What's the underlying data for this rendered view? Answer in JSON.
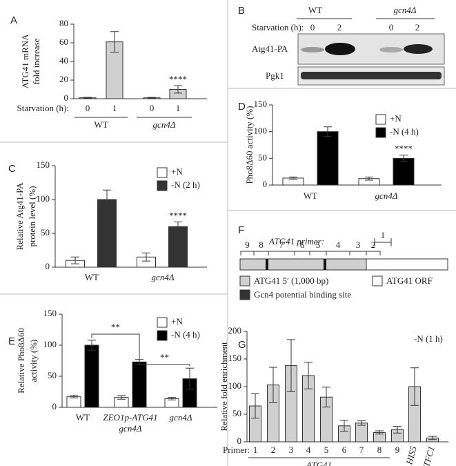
{
  "chart_data": [
    {
      "type": "bar",
      "panel": "A",
      "y_label": [
        "ATG41 mRNA",
        "fold increase"
      ],
      "x_label": "Starvation (h):",
      "categories": [
        "0",
        "1",
        "0",
        "1"
      ],
      "groups": [
        "WT",
        "gcn4Δ"
      ],
      "color": "#d0d0d0",
      "values": [
        1,
        61,
        1,
        10
      ],
      "errors": [
        0.5,
        11,
        0.5,
        4
      ],
      "ylim": [
        0,
        80
      ],
      "yticks": [
        0,
        20,
        40,
        60,
        80
      ],
      "annotations": [
        "****"
      ]
    },
    {
      "type": "grouped-bar",
      "panel": "C",
      "y_label": [
        "Relative Atg41-PA",
        "protein level (%)"
      ],
      "categories": [
        "WT",
        "gcn4Δ"
      ],
      "series": [
        {
          "name": "+N",
          "color": "#ffffff",
          "values": [
            10,
            15
          ],
          "errors": [
            5,
            6
          ]
        },
        {
          "name": "-N (2 h)",
          "color": "#333333",
          "values": [
            100,
            60
          ],
          "errors": [
            14,
            7
          ]
        }
      ],
      "ylim": [
        0,
        150
      ],
      "yticks": [
        0,
        50,
        100,
        150
      ],
      "annotations": [
        "****"
      ]
    },
    {
      "type": "grouped-bar",
      "panel": "D",
      "y_label": [
        "Pho8Δ60 activity (%)"
      ],
      "categories": [
        "WT",
        "gcn4Δ"
      ],
      "series": [
        {
          "name": "+N",
          "color": "#ffffff",
          "values": [
            13,
            12
          ],
          "errors": [
            2,
            3
          ]
        },
        {
          "name": "-N (4 h)",
          "color": "#000000",
          "values": [
            100,
            50
          ],
          "errors": [
            9,
            6
          ]
        }
      ],
      "ylim": [
        0,
        150
      ],
      "yticks": [
        0,
        50,
        100,
        150
      ],
      "annotations": [
        "****"
      ]
    },
    {
      "type": "grouped-bar",
      "panel": "E",
      "y_label": [
        "Relative Pho8Δ60",
        "activity (%)"
      ],
      "categories": [
        "WT",
        "ZEO1p-ATG41 gcn4Δ",
        "gcn4Δ"
      ],
      "series": [
        {
          "name": "+N",
          "color": "#ffffff",
          "values": [
            17,
            16,
            14
          ],
          "errors": [
            2,
            3,
            2
          ]
        },
        {
          "name": "-N (4 h)",
          "color": "#000000",
          "values": [
            100,
            73,
            46
          ],
          "errors": [
            8,
            4,
            17
          ]
        }
      ],
      "ylim": [
        0,
        150
      ],
      "yticks": [
        0,
        50,
        100,
        150
      ],
      "annotations": [
        "**",
        "**"
      ]
    },
    {
      "type": "bar",
      "panel": "G",
      "y_label": [
        "Relative fold enrichment"
      ],
      "x_label": "Primer:",
      "categories": [
        "1",
        "2",
        "3",
        "4",
        "5",
        "6",
        "7",
        "8",
        "9",
        "HIS5",
        "TFC1"
      ],
      "groups": [
        "ATG41"
      ],
      "color": "#d0d0d0",
      "values": [
        65,
        103,
        138,
        120,
        81,
        29,
        34,
        17,
        22,
        100,
        7
      ],
      "errors": [
        22,
        32,
        47,
        24,
        18,
        10,
        4,
        3,
        6,
        34,
        3
      ],
      "ylim": [
        0,
        200
      ],
      "yticks": [
        0,
        50,
        100,
        150,
        200
      ],
      "annotations": [
        "-N (1 h)"
      ]
    }
  ],
  "blot": {
    "panel": "B",
    "groups": [
      "WT",
      "gcn4Δ"
    ],
    "x_label": "Starvation (h):",
    "lanes": [
      "0",
      "2",
      "0",
      "2"
    ],
    "rows": [
      "Atg41-PA",
      "Pgk1"
    ]
  },
  "diagram": {
    "panel": "F",
    "title": "ATG41 primer:",
    "primers": [
      "9",
      "8",
      "7",
      "6",
      "5",
      "4",
      "3",
      "2",
      "1"
    ],
    "legend": [
      "ATG41 5′ (1,000 bp)",
      "ATG41 ORF",
      "Gcn4 potential binding site"
    ]
  }
}
